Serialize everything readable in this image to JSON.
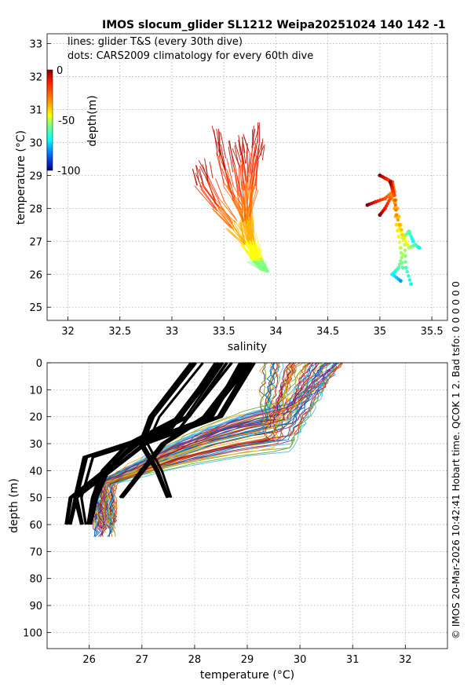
{
  "title": "IMOS slocum_glider SL1212 Weipa20251024 140  142  -1",
  "side_text": "© IMOS 20-Mar-2026 10:42:41 Hobart time. QCOK 1  2. Bad tsfo: 0  0  0  0  0  0",
  "colors": {
    "glider_hot": "#c0400a",
    "climatology_shallow": "#8b0000",
    "profile_black": "#000000"
  },
  "chart_data": [
    {
      "type": "scatter",
      "name": "ts-diagram",
      "xlabel": "salinity",
      "ylabel": "temperature (°C)",
      "xlim": [
        31.8,
        35.65
      ],
      "ylim": [
        24.6,
        33.3
      ],
      "xticks": [
        32,
        32.5,
        33,
        33.5,
        34,
        34.5,
        35,
        35.5
      ],
      "yticks": [
        25,
        26,
        27,
        28,
        29,
        30,
        31,
        32,
        33
      ],
      "grid": true,
      "legend_lines": "lines: glider T&S (every 30th dive)",
      "legend_dots": "dots: CARS2009 climatology for every 60th dive",
      "colorbar": {
        "label": "depth(m)",
        "ticks": [
          0,
          -50,
          -100
        ],
        "range": [
          -100,
          0
        ]
      },
      "glider_series": [
        {
          "name": "glider-ts-line",
          "depth": [
            0,
            -10,
            -20,
            -30,
            -40,
            -50,
            -60
          ],
          "salinity": [
            33.45,
            33.48,
            33.55,
            33.7,
            33.75,
            33.85,
            33.92
          ],
          "temperature": [
            30.4,
            29.6,
            28.7,
            27.9,
            27.1,
            26.5,
            26.1
          ]
        },
        {
          "name": "glider-ts-line",
          "depth": [
            0,
            -10,
            -20,
            -30,
            -40,
            -50,
            -60
          ],
          "salinity": [
            33.7,
            33.72,
            33.73,
            33.74,
            33.78,
            33.85,
            33.9
          ],
          "temperature": [
            30.2,
            29.7,
            28.8,
            27.8,
            27.0,
            26.4,
            26.1
          ]
        },
        {
          "name": "glider-ts-line",
          "depth": [
            0,
            -10,
            -20,
            -30,
            -40,
            -50,
            -60
          ],
          "salinity": [
            33.3,
            33.35,
            33.45,
            33.6,
            33.7,
            33.8,
            33.9
          ],
          "temperature": [
            29.4,
            28.9,
            28.2,
            27.6,
            27.0,
            26.5,
            26.1
          ]
        },
        {
          "name": "glider-ts-line",
          "depth": [
            0,
            -10,
            -20,
            -30,
            -40,
            -50,
            -60
          ],
          "salinity": [
            33.8,
            33.78,
            33.75,
            33.74,
            33.76,
            33.82,
            33.9
          ],
          "temperature": [
            30.5,
            29.9,
            29.0,
            28.0,
            27.2,
            26.5,
            26.1
          ]
        },
        {
          "name": "glider-ts-line",
          "depth": [
            0,
            -10,
            -20,
            -30,
            -40,
            -50,
            -60
          ],
          "salinity": [
            33.25,
            33.3,
            33.45,
            33.6,
            33.72,
            33.82,
            33.92
          ],
          "temperature": [
            29.2,
            28.7,
            28.0,
            27.4,
            26.9,
            26.4,
            26.1
          ]
        },
        {
          "name": "glider-ts-line",
          "depth": [
            0,
            -10,
            -20,
            -30,
            -40,
            -50,
            -60
          ],
          "salinity": [
            33.65,
            33.68,
            33.7,
            33.71,
            33.74,
            33.8,
            33.88
          ],
          "temperature": [
            29.9,
            29.3,
            28.5,
            27.6,
            26.9,
            26.4,
            26.1
          ]
        },
        {
          "name": "glider-ts-line",
          "depth": [
            0,
            -10,
            -20,
            -30,
            -40,
            -50,
            -60
          ],
          "salinity": [
            33.5,
            33.55,
            33.62,
            33.7,
            33.77,
            33.84,
            33.93
          ],
          "temperature": [
            30.0,
            29.2,
            28.3,
            27.6,
            26.9,
            26.4,
            26.05
          ]
        },
        {
          "name": "glider-ts-line",
          "depth": [
            0,
            -10,
            -20,
            -30,
            -40,
            -50,
            -60
          ],
          "salinity": [
            33.85,
            33.82,
            33.78,
            33.74,
            33.75,
            33.8,
            33.88
          ],
          "temperature": [
            30.0,
            29.5,
            28.6,
            27.7,
            27.0,
            26.4,
            26.1
          ]
        }
      ],
      "climatology_series": [
        {
          "name": "cars-dots",
          "depth": [
            0,
            -10,
            -20,
            -30,
            -40,
            -50,
            -60
          ],
          "salinity": [
            34.88,
            34.96,
            35.05,
            35.12,
            35.16,
            35.2,
            35.22
          ],
          "temperature": [
            28.1,
            28.2,
            28.3,
            28.5,
            27.5,
            26.8,
            26.2
          ]
        },
        {
          "name": "cars-dots",
          "depth": [
            0,
            -10,
            -20,
            -30,
            -40,
            -50,
            -60,
            -70
          ],
          "salinity": [
            35.0,
            35.06,
            35.12,
            35.14,
            35.2,
            35.24,
            35.25,
            35.3
          ],
          "temperature": [
            29.0,
            28.9,
            28.8,
            28.5,
            27.5,
            26.9,
            26.2,
            25.7
          ]
        },
        {
          "name": "cars-dots",
          "depth": [
            0,
            -10,
            -20,
            -30,
            -40,
            -50,
            -60,
            -70
          ],
          "salinity": [
            35.0,
            35.05,
            35.1,
            35.13,
            35.18,
            35.22,
            35.28,
            35.32
          ],
          "temperature": [
            27.8,
            28.0,
            28.3,
            28.4,
            27.5,
            27.1,
            27.3,
            27.0
          ]
        },
        {
          "name": "cars-dots",
          "depth": [
            0,
            -10,
            -20,
            -30,
            -40,
            -50,
            -60,
            -70
          ],
          "salinity": [
            35.1,
            35.12,
            35.14,
            35.16,
            35.22,
            35.28,
            35.34,
            35.38
          ],
          "temperature": [
            28.8,
            28.6,
            28.4,
            27.8,
            27.2,
            26.8,
            26.9,
            26.8
          ]
        },
        {
          "name": "cars-dots",
          "depth": [
            -50,
            -60,
            -70,
            -80
          ],
          "salinity": [
            35.22,
            35.18,
            35.12,
            35.2
          ],
          "temperature": [
            26.6,
            26.2,
            26.0,
            25.8
          ]
        }
      ]
    },
    {
      "type": "line",
      "name": "depth-profile",
      "xlabel": "temperature (°C)",
      "ylabel": "depth (m)",
      "xlim": [
        25.2,
        32.8
      ],
      "ylim": [
        106,
        0
      ],
      "xticks": [
        26,
        27,
        28,
        29,
        30,
        31,
        32
      ],
      "yticks": [
        0,
        10,
        20,
        30,
        40,
        50,
        60,
        70,
        80,
        90,
        100
      ],
      "grid": true,
      "glider_profile_family": {
        "name": "glider-profile-line",
        "surface_temp_range": [
          29.3,
          30.8
        ],
        "bottom_temp_range": [
          26.1,
          26.5
        ],
        "bottom_depth_range": [
          58,
          66
        ]
      },
      "climatology_profiles": [
        {
          "name": "cars-profile",
          "depth": [
            0,
            20,
            30,
            50,
            60
          ],
          "temperature": [
            29.0,
            28.4,
            27.0,
            25.7,
            25.6
          ]
        },
        {
          "name": "cars-profile",
          "depth": [
            0,
            20,
            30,
            40,
            50,
            60
          ],
          "temperature": [
            28.5,
            27.8,
            26.8,
            26.3,
            26.1,
            26.0
          ]
        },
        {
          "name": "cars-profile",
          "depth": [
            0,
            20,
            30,
            40,
            50
          ],
          "temperature": [
            28.0,
            27.2,
            27.0,
            27.3,
            27.5
          ]
        },
        {
          "name": "cars-profile",
          "depth": [
            0,
            25,
            35,
            50,
            60
          ],
          "temperature": [
            28.6,
            27.6,
            26.0,
            25.8,
            25.9
          ]
        },
        {
          "name": "cars-profile",
          "depth": [
            0,
            20,
            30,
            50
          ],
          "temperature": [
            29.0,
            28.2,
            27.4,
            26.6
          ]
        }
      ]
    }
  ]
}
